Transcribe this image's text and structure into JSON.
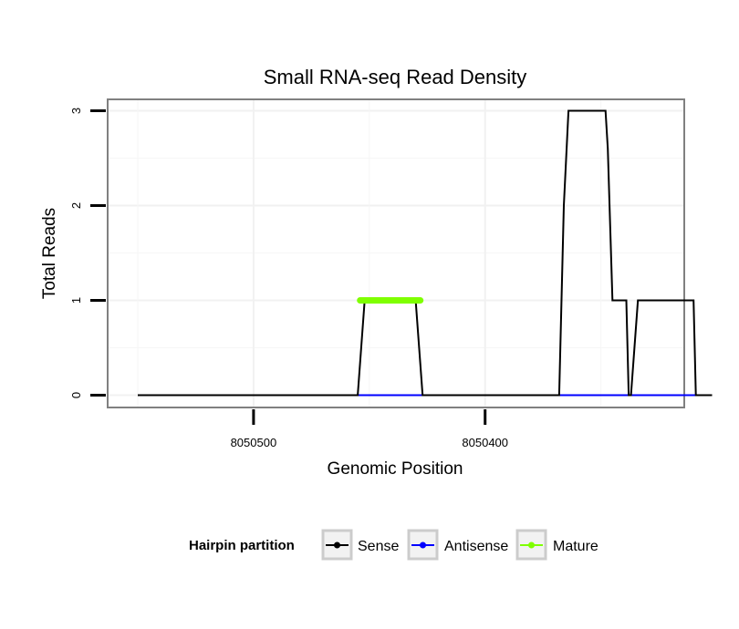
{
  "chart_data": {
    "type": "line",
    "title": "Small RNA-seq Read Density",
    "xlabel": "Genomic Position",
    "ylabel": "Total Reads",
    "xlim": [
      8050563,
      8050314
    ],
    "ylim": [
      -0.13,
      3.12
    ],
    "x_reversed": true,
    "x_ticks": [
      {
        "value": 8050500,
        "label": "8050500"
      },
      {
        "value": 8050400,
        "label": "8050400"
      }
    ],
    "y_ticks": [
      {
        "value": 0,
        "label": "0"
      },
      {
        "value": 1,
        "label": "1"
      },
      {
        "value": 2,
        "label": "2"
      },
      {
        "value": 3,
        "label": "3"
      }
    ],
    "grid": true,
    "legend": {
      "title": "Hairpin partition",
      "position": "bottom",
      "entries": [
        {
          "name": "Sense",
          "color": "#000000"
        },
        {
          "name": "Antisense",
          "color": "#0000ff"
        },
        {
          "name": "Mature",
          "color": "#7fff00"
        }
      ]
    },
    "series": [
      {
        "name": "Sense",
        "color": "#000000",
        "x": [
          8050550,
          8050455,
          8050452,
          8050430,
          8050427,
          8050368,
          8050366,
          8050364,
          8050348,
          8050347,
          8050345,
          8050339,
          8050338,
          8050337,
          8050334,
          8050331,
          8050310,
          8050309,
          8050302
        ],
        "y": [
          0,
          0,
          1,
          1,
          0,
          0,
          2,
          3,
          3,
          2.6,
          1,
          1,
          0,
          0,
          1,
          1,
          1,
          0,
          0
        ]
      },
      {
        "name": "Antisense",
        "color": "#0000ff",
        "x": [
          8050455,
          8050429,
          8050365,
          8050303
        ],
        "y": [
          0,
          0,
          0,
          0
        ]
      },
      {
        "name": "Mature",
        "color": "#7fff00",
        "x": [
          8050454,
          8050428
        ],
        "y": [
          1,
          1
        ]
      }
    ]
  }
}
